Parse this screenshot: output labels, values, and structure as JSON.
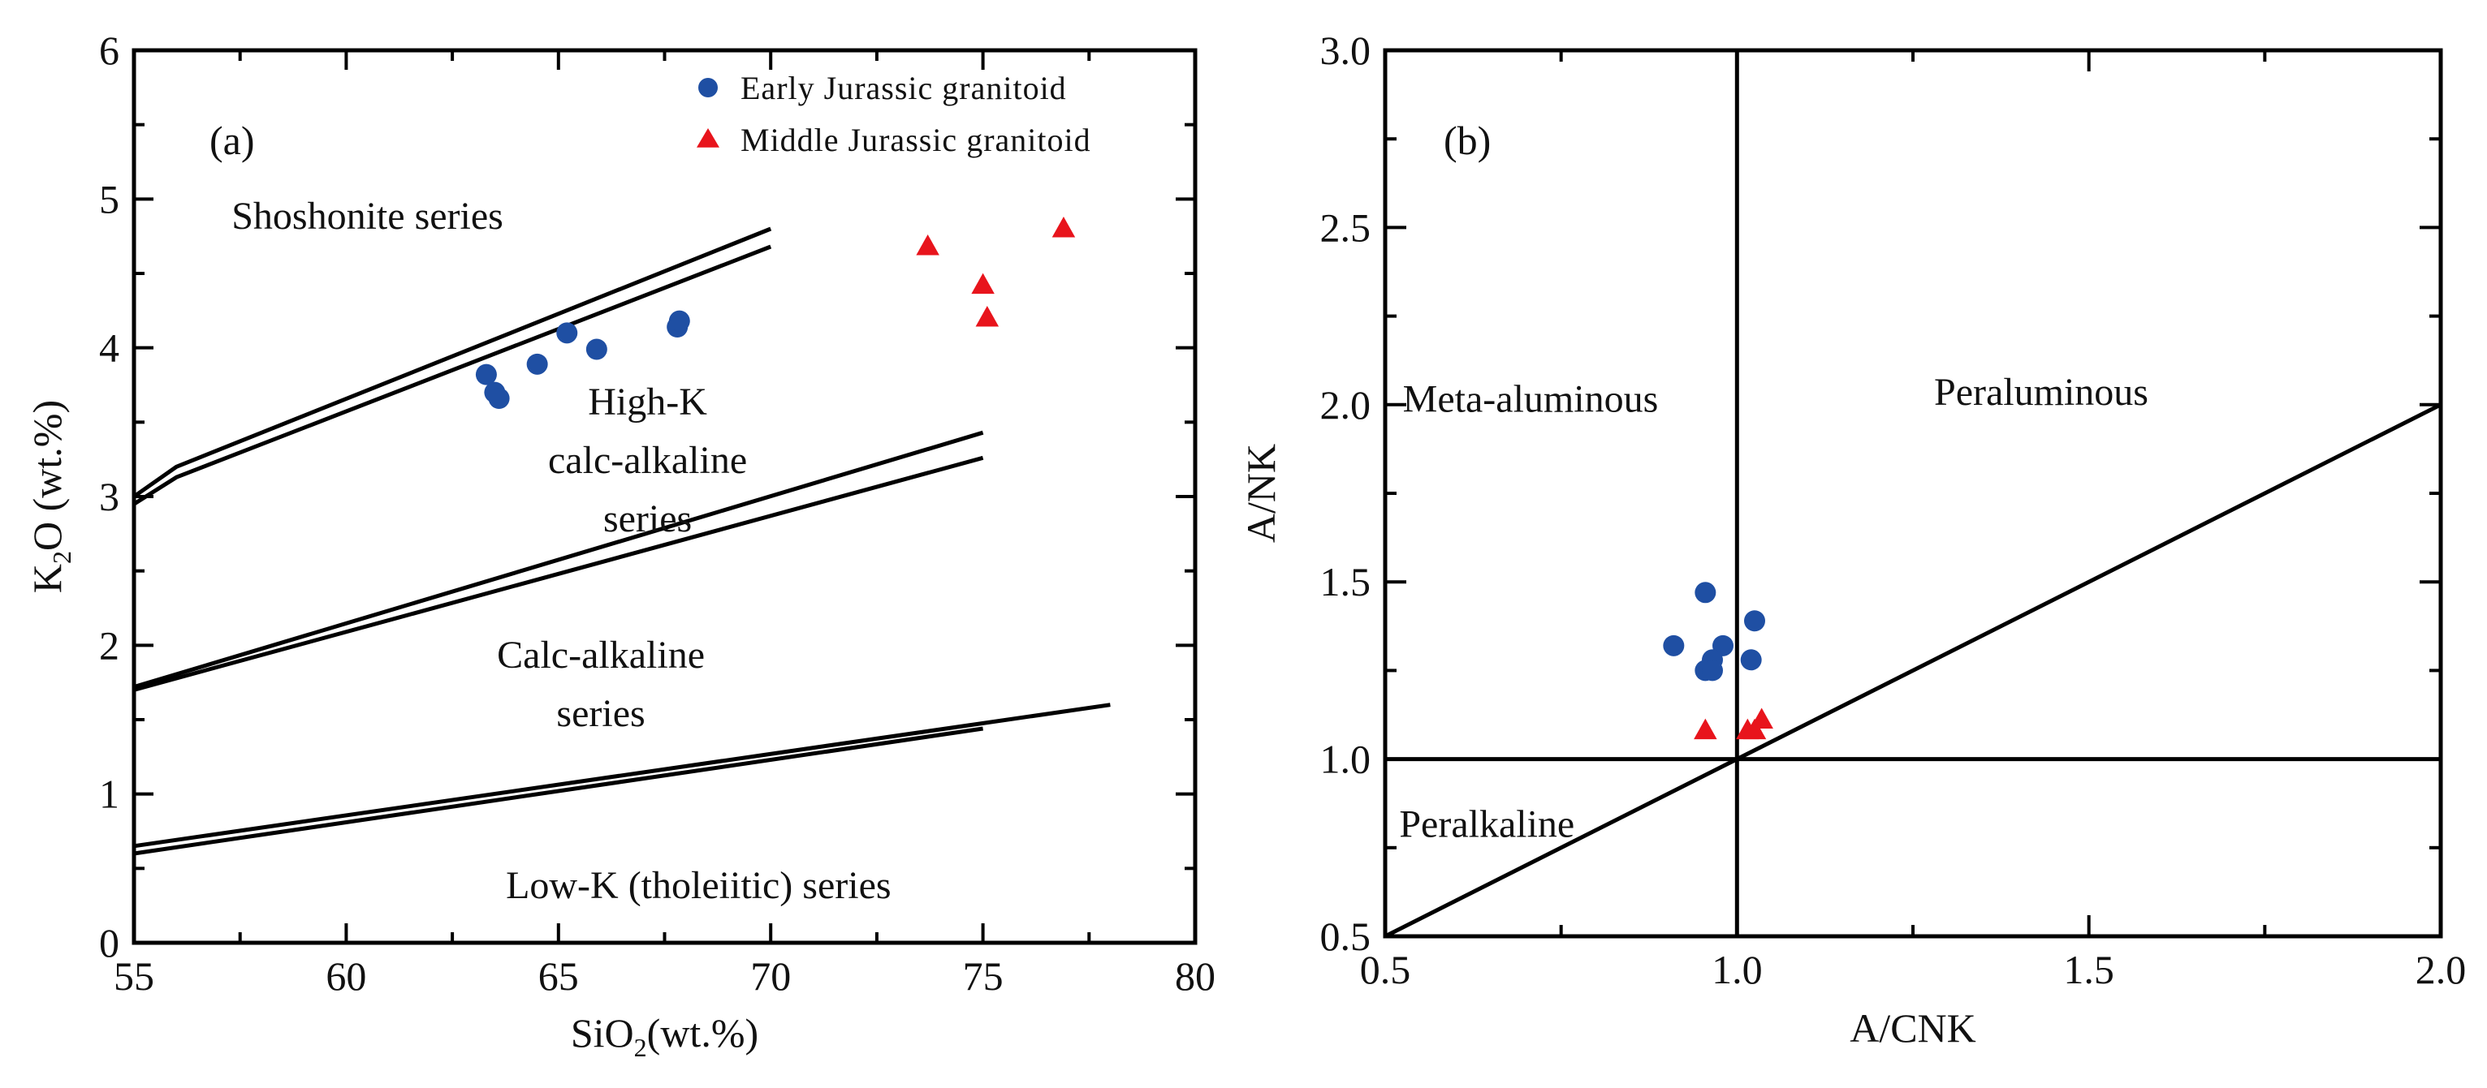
{
  "chart_data": [
    {
      "type": "scatter",
      "panel_label": "(a)",
      "xlabel": "SiO",
      "xlabel_sub": "2",
      "xlabel_suffix": "(wt.%)",
      "ylabel": "K",
      "ylabel_sub": "2",
      "ylabel_suffix": "O (wt.%)",
      "xlim": [
        55,
        80
      ],
      "ylim": [
        0,
        6
      ],
      "x_ticks": [
        55,
        60,
        65,
        70,
        75,
        80
      ],
      "y_ticks": [
        0,
        1,
        2,
        3,
        4,
        5,
        6
      ],
      "x_tick_labels": [
        "55",
        "60",
        "65",
        "70",
        "75",
        "80"
      ],
      "y_tick_labels": [
        "0",
        "1",
        "2",
        "3",
        "4",
        "5",
        "6"
      ],
      "boundary_lines": [
        {
          "name": "shoshonite-upper",
          "points": [
            [
              55,
              3.0
            ],
            [
              56,
              3.2
            ],
            [
              70,
              4.8
            ]
          ]
        },
        {
          "name": "shoshonite-lower",
          "points": [
            [
              55,
              2.95
            ],
            [
              56,
              3.13
            ],
            [
              70,
              4.68
            ]
          ]
        },
        {
          "name": "high-k-upper",
          "points": [
            [
              55,
              1.72
            ],
            [
              75,
              3.43
            ]
          ]
        },
        {
          "name": "high-k-lower",
          "points": [
            [
              55,
              1.7
            ],
            [
              75,
              3.26
            ]
          ]
        },
        {
          "name": "calc-alkaline-upper",
          "points": [
            [
              55,
              0.65
            ],
            [
              78,
              1.6
            ]
          ]
        },
        {
          "name": "calc-alkaline-lower",
          "points": [
            [
              55,
              0.6
            ],
            [
              75,
              1.44
            ]
          ]
        }
      ],
      "regions": [
        {
          "name": "shoshonite",
          "lines": [
            "Shoshonite series"
          ],
          "x": 60.5,
          "y": 4.8
        },
        {
          "name": "high-k",
          "lines": [
            "High-K",
            "calc-alkaline",
            "series"
          ],
          "x": 67.1,
          "y": 3.55
        },
        {
          "name": "calc-alkaline",
          "lines": [
            "Calc-alkaline",
            "series"
          ],
          "x": 66.0,
          "y": 1.85
        },
        {
          "name": "low-k",
          "lines": [
            "Low-K (tholeiitic) series"
          ],
          "x": 68.3,
          "y": 0.3
        }
      ],
      "series": [
        {
          "name": "Early Jurassic granitoid",
          "marker": "circle",
          "color": "#1f4fa3",
          "points": [
            [
              63.3,
              3.82
            ],
            [
              63.5,
              3.7
            ],
            [
              63.6,
              3.66
            ],
            [
              64.5,
              3.89
            ],
            [
              65.2,
              4.1
            ],
            [
              65.9,
              3.99
            ],
            [
              67.8,
              4.14
            ],
            [
              67.85,
              4.18
            ]
          ]
        },
        {
          "name": "Middle Jurassic granitoid",
          "marker": "triangle",
          "color": "#e8141c",
          "points": [
            [
              73.7,
              4.68
            ],
            [
              75.0,
              4.42
            ],
            [
              75.1,
              4.2
            ],
            [
              76.9,
              4.8
            ]
          ]
        }
      ],
      "legend_position": "top-right"
    },
    {
      "type": "scatter",
      "panel_label": "(b)",
      "xlabel": "A/CNK",
      "ylabel": "A/NK",
      "xlim": [
        0.5,
        2.0
      ],
      "ylim": [
        0.5,
        3.0
      ],
      "x_ticks": [
        0.5,
        1.0,
        1.5,
        2.0
      ],
      "y_ticks": [
        0.5,
        1.0,
        1.5,
        2.0,
        2.5,
        3.0
      ],
      "x_tick_labels": [
        "0.5",
        "1.0",
        "1.5",
        "2.0"
      ],
      "y_tick_labels": [
        "0.5",
        "1.0",
        "1.5",
        "2.0",
        "2.5",
        "3.0"
      ],
      "boundary_lines": [
        {
          "name": "vertical-1",
          "points": [
            [
              1.0,
              0.5
            ],
            [
              1.0,
              3.0
            ]
          ]
        },
        {
          "name": "horizontal-1",
          "points": [
            [
              0.5,
              1.0
            ],
            [
              2.0,
              1.0
            ]
          ]
        },
        {
          "name": "diagonal",
          "points": [
            [
              0.5,
              0.5
            ],
            [
              2.0,
              2.0
            ]
          ]
        }
      ],
      "regions": [
        {
          "name": "meta-aluminous",
          "lines": [
            "Meta-aluminous"
          ],
          "x": 0.525,
          "y": 1.98
        },
        {
          "name": "peraluminous",
          "lines": [
            "Peraluminous"
          ],
          "x": 1.28,
          "y": 2.0
        },
        {
          "name": "peralkaline",
          "lines": [
            "Peralkaline"
          ],
          "x": 0.52,
          "y": 0.78
        }
      ],
      "series": [
        {
          "name": "Early Jurassic granitoid",
          "marker": "circle",
          "color": "#1f4fa3",
          "points": [
            [
              0.955,
              1.47
            ],
            [
              0.91,
              1.32
            ],
            [
              0.98,
              1.32
            ],
            [
              0.965,
              1.28
            ],
            [
              0.955,
              1.25
            ],
            [
              0.965,
              1.25
            ],
            [
              1.025,
              1.39
            ],
            [
              1.02,
              1.28
            ]
          ]
        },
        {
          "name": "Middle Jurassic granitoid",
          "marker": "triangle",
          "color": "#e8141c",
          "points": [
            [
              0.955,
              1.08
            ],
            [
              1.015,
              1.08
            ],
            [
              1.025,
              1.08
            ],
            [
              1.035,
              1.11
            ]
          ]
        }
      ]
    }
  ]
}
